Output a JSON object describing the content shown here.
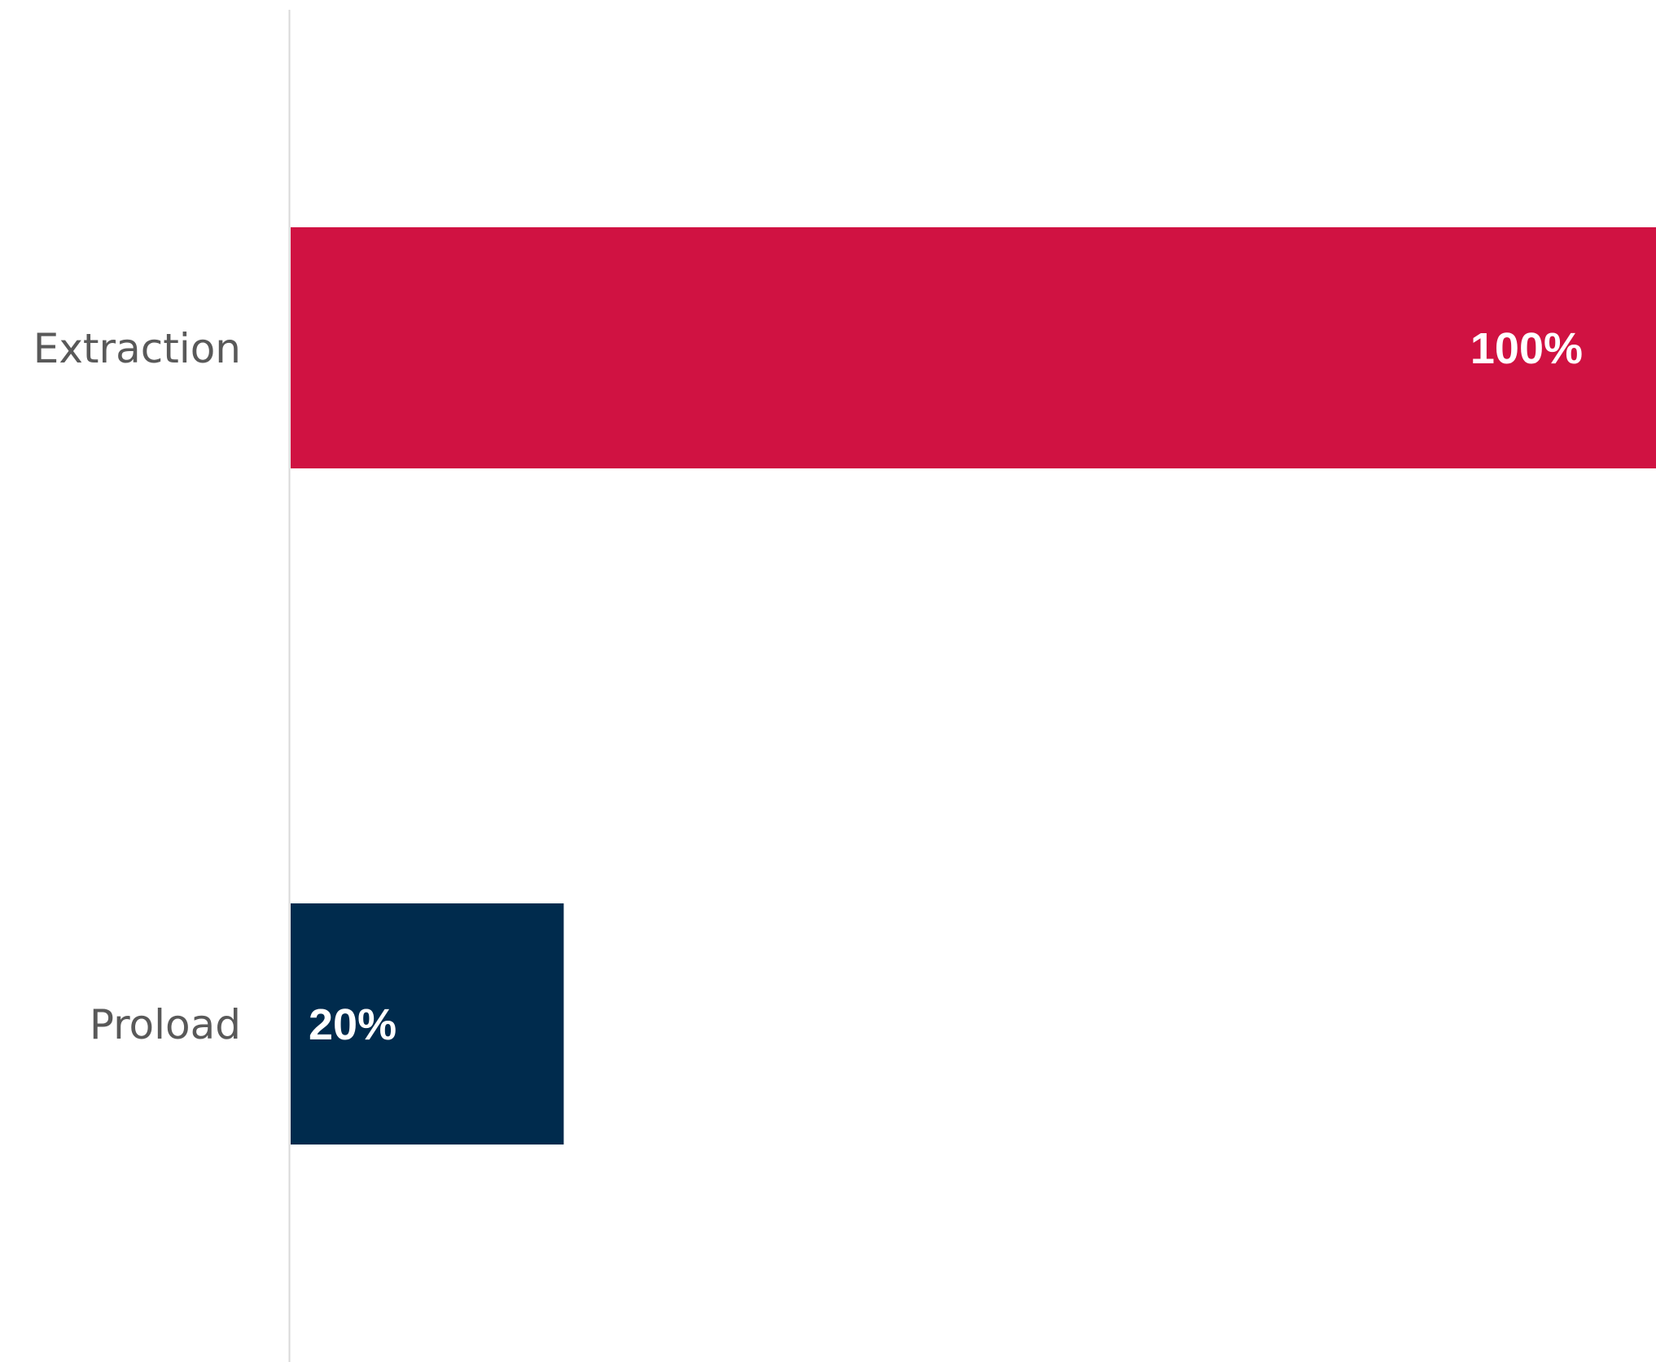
{
  "chart_data": {
    "type": "bar",
    "orientation": "horizontal",
    "title": "",
    "xlabel": "",
    "ylabel": "",
    "categories": [
      "Extraction",
      "Proload"
    ],
    "values": [
      100,
      20
    ],
    "data_labels": [
      "100%",
      "20%"
    ],
    "colors": [
      "#D01242",
      "#002B4D"
    ],
    "xlim": [
      0,
      100
    ],
    "grid": false,
    "legend": "none",
    "axis_color": "#D9D9D9"
  }
}
